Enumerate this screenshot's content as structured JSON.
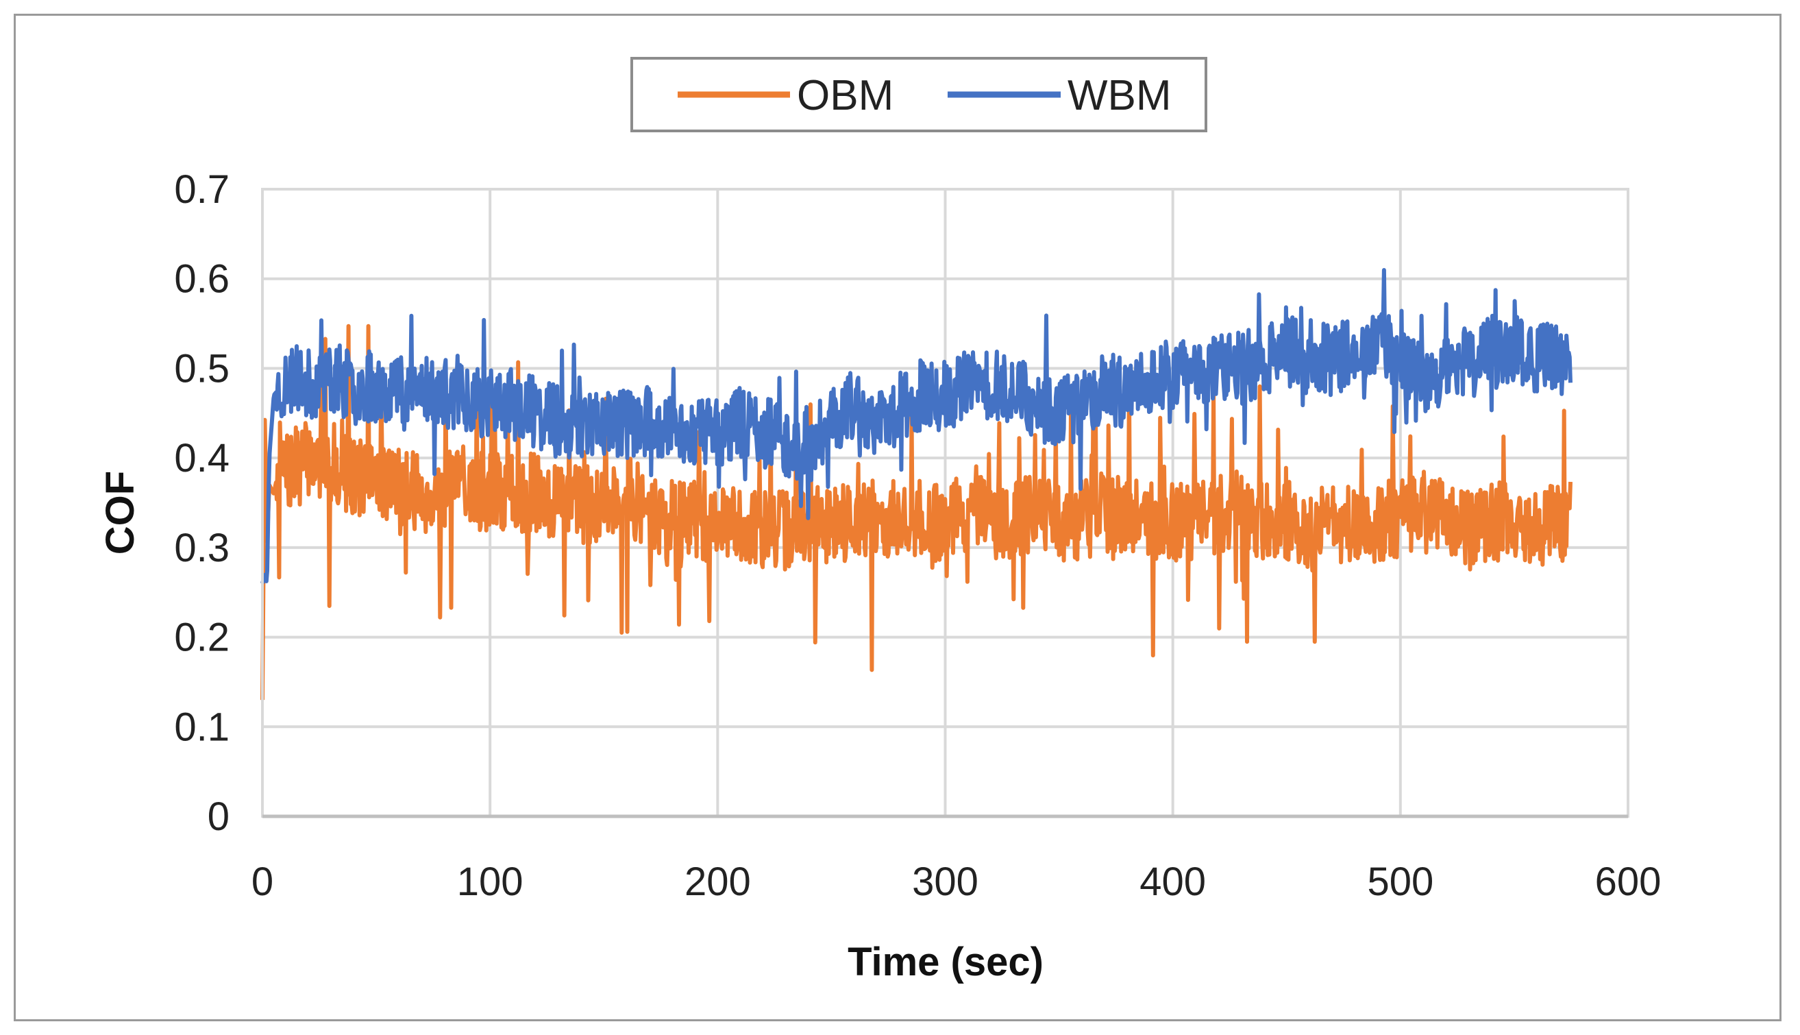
{
  "chart_data": {
    "type": "line",
    "title": "",
    "xlabel": "Time (sec)",
    "ylabel": "COF",
    "xlim": [
      0,
      600
    ],
    "ylim": [
      0,
      0.7
    ],
    "xticks": [
      0,
      100,
      200,
      300,
      400,
      500,
      600
    ],
    "yticks": [
      0,
      0.1,
      0.2,
      0.3,
      0.4,
      0.5,
      0.6,
      0.7
    ],
    "xtick_labels": [
      "0",
      "100",
      "200",
      "300",
      "400",
      "500",
      "600"
    ],
    "ytick_labels": [
      "0",
      "0.1",
      "0.2",
      "0.3",
      "0.4",
      "0.5",
      "0.6",
      "0.7"
    ],
    "grid": true,
    "legend_position": "top-center",
    "series": [
      {
        "name": "OBM",
        "color": "#ED7D31",
        "x": [
          0,
          1,
          2,
          3,
          5,
          8,
          10,
          15,
          20,
          30,
          40,
          50,
          60,
          70,
          80,
          90,
          100,
          110,
          120,
          130,
          140,
          150,
          160,
          170,
          180,
          190,
          200,
          210,
          220,
          230,
          240,
          250,
          260,
          270,
          280,
          290,
          300,
          310,
          320,
          330,
          340,
          350,
          360,
          370,
          380,
          390,
          400,
          410,
          420,
          430,
          440,
          450,
          460,
          470,
          480,
          490,
          500,
          510,
          520,
          530,
          540,
          550,
          560,
          570,
          575
        ],
        "y": [
          0.13,
          0.45,
          0.3,
          0.37,
          0.36,
          0.4,
          0.38,
          0.39,
          0.4,
          0.39,
          0.38,
          0.38,
          0.37,
          0.36,
          0.36,
          0.37,
          0.36,
          0.36,
          0.36,
          0.35,
          0.35,
          0.35,
          0.36,
          0.34,
          0.33,
          0.33,
          0.32,
          0.33,
          0.32,
          0.32,
          0.32,
          0.33,
          0.33,
          0.33,
          0.33,
          0.33,
          0.33,
          0.34,
          0.33,
          0.33,
          0.34,
          0.33,
          0.33,
          0.34,
          0.34,
          0.33,
          0.33,
          0.33,
          0.34,
          0.34,
          0.33,
          0.33,
          0.32,
          0.33,
          0.32,
          0.33,
          0.33,
          0.34,
          0.33,
          0.32,
          0.33,
          0.33,
          0.32,
          0.33,
          0.33
        ]
      },
      {
        "name": "WBM",
        "color": "#4472C4",
        "x": [
          0,
          1,
          2,
          3,
          5,
          8,
          10,
          15,
          20,
          30,
          40,
          50,
          60,
          70,
          80,
          90,
          100,
          110,
          120,
          130,
          140,
          150,
          160,
          170,
          180,
          190,
          200,
          210,
          220,
          230,
          240,
          250,
          260,
          270,
          280,
          290,
          300,
          310,
          320,
          330,
          340,
          350,
          360,
          370,
          380,
          390,
          400,
          410,
          420,
          430,
          440,
          450,
          460,
          470,
          480,
          490,
          500,
          510,
          520,
          530,
          540,
          550,
          560,
          570,
          575
        ],
        "y": [
          0.26,
          0.27,
          0.26,
          0.4,
          0.47,
          0.48,
          0.48,
          0.49,
          0.48,
          0.49,
          0.48,
          0.48,
          0.48,
          0.48,
          0.47,
          0.47,
          0.46,
          0.46,
          0.45,
          0.44,
          0.44,
          0.44,
          0.44,
          0.44,
          0.43,
          0.43,
          0.43,
          0.44,
          0.43,
          0.42,
          0.41,
          0.44,
          0.46,
          0.43,
          0.46,
          0.47,
          0.47,
          0.48,
          0.48,
          0.48,
          0.46,
          0.45,
          0.46,
          0.48,
          0.47,
          0.49,
          0.49,
          0.5,
          0.5,
          0.5,
          0.51,
          0.52,
          0.51,
          0.51,
          0.52,
          0.53,
          0.51,
          0.49,
          0.5,
          0.5,
          0.52,
          0.52,
          0.51,
          0.52,
          0.52
        ]
      }
    ]
  }
}
